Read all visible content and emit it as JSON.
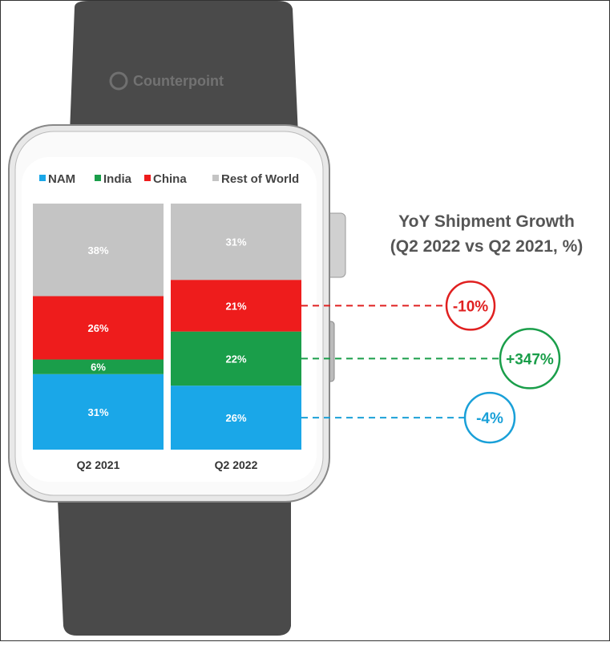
{
  "logo": {
    "text": "Counterpoint"
  },
  "chart_data": {
    "type": "bar",
    "stacked": true,
    "percent_stacked": true,
    "categories": [
      "Q2 2021",
      "Q2 2022"
    ],
    "series": [
      {
        "name": "NAM",
        "color": "#1aa7e8",
        "values": [
          31,
          26
        ]
      },
      {
        "name": "India",
        "color": "#1a9e4a",
        "values": [
          6,
          22
        ]
      },
      {
        "name": "China",
        "color": "#ee1c1c",
        "values": [
          26,
          21
        ]
      },
      {
        "name": "Rest of World",
        "color": "#c4c4c4",
        "values": [
          38,
          31
        ]
      }
    ],
    "data_labels": [
      [
        "31%",
        "6%",
        "26%",
        "38%"
      ],
      [
        "26%",
        "22%",
        "21%",
        "31%"
      ]
    ],
    "legend_position": "top",
    "grid": false,
    "annotation": {
      "title_line1": "YoY Shipment Growth",
      "title_line2": "(Q2 2022 vs Q2 2021, %)",
      "growth": [
        {
          "series": "China",
          "label": "-10%",
          "color": "#e02020"
        },
        {
          "series": "India",
          "label": "+347%",
          "color": "#1a9e4a"
        },
        {
          "series": "NAM",
          "label": "-4%",
          "color": "#1aa0d8"
        }
      ]
    }
  }
}
